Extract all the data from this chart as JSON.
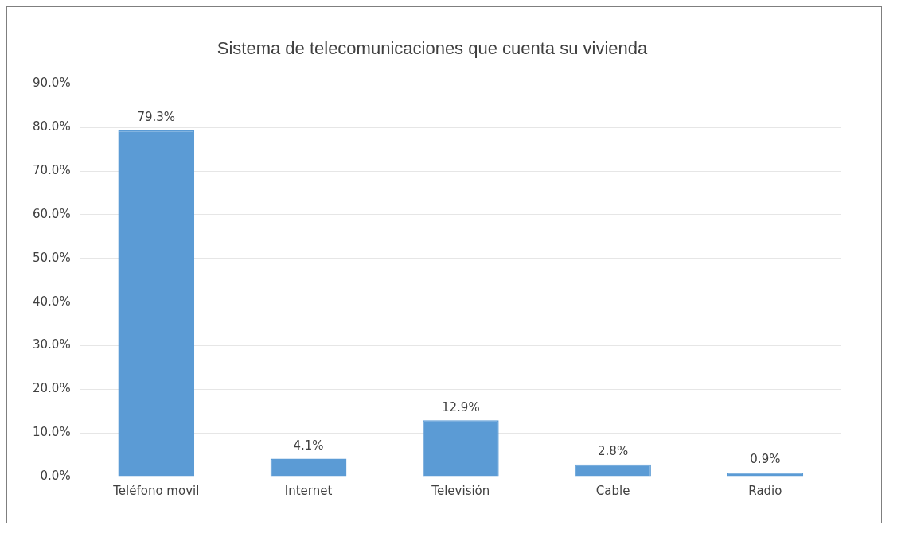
{
  "chart_data": {
    "type": "bar",
    "title": "Sistema de telecomunicaciones que cuenta su vivienda",
    "categories": [
      "Teléfono movil",
      "Internet",
      "Televisión",
      "Cable",
      "Radio"
    ],
    "values": [
      79.3,
      4.1,
      12.9,
      2.8,
      0.9
    ],
    "value_labels": [
      "79.3%",
      "4.1%",
      "12.9%",
      "2.8%",
      "0.9%"
    ],
    "color": "#5b9bd5",
    "ylim": [
      0,
      90
    ],
    "yticks": [
      {
        "value": 0,
        "label": "0.0%"
      },
      {
        "value": 10,
        "label": "10.0%"
      },
      {
        "value": 20,
        "label": "20.0%"
      },
      {
        "value": 30,
        "label": "30.0%"
      },
      {
        "value": 40,
        "label": "40.0%"
      },
      {
        "value": 50,
        "label": "50.0%"
      },
      {
        "value": 60,
        "label": "60.0%"
      },
      {
        "value": 70,
        "label": "70.0%"
      },
      {
        "value": 80,
        "label": "80.0%"
      },
      {
        "value": 90,
        "label": "90.0%"
      }
    ],
    "grid": "y"
  }
}
